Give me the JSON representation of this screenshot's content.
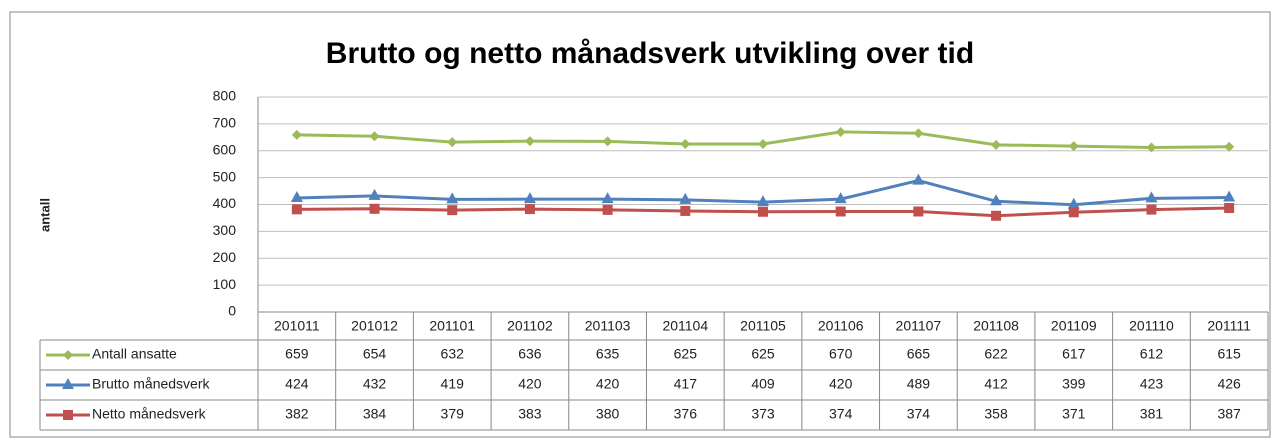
{
  "chart_data": {
    "type": "line",
    "title": "Brutto og netto månadsverk utvikling over tid",
    "y_label": "antall",
    "categories": [
      "201011",
      "201012",
      "201101",
      "201102",
      "201103",
      "201104",
      "201105",
      "201106",
      "201107",
      "201108",
      "201109",
      "201110",
      "201111"
    ],
    "series": [
      {
        "name": "Antall ansatte",
        "color": "#9bbb59",
        "marker": "diamond",
        "values": [
          659,
          654,
          632,
          636,
          635,
          625,
          625,
          670,
          665,
          622,
          617,
          612,
          615
        ]
      },
      {
        "name": "Brutto månedsverk",
        "color": "#4f81bd",
        "marker": "triangle",
        "values": [
          424,
          432,
          419,
          420,
          420,
          417,
          409,
          420,
          489,
          412,
          399,
          423,
          426
        ]
      },
      {
        "name": "Netto månedsverk",
        "color": "#c0504d",
        "marker": "square",
        "values": [
          382,
          384,
          379,
          383,
          380,
          376,
          373,
          374,
          374,
          358,
          371,
          381,
          387
        ]
      }
    ],
    "ylim": [
      0,
      800
    ],
    "yticks": [
      0,
      100,
      200,
      300,
      400,
      500,
      600,
      700,
      800
    ],
    "grid": true,
    "data_table": true
  }
}
